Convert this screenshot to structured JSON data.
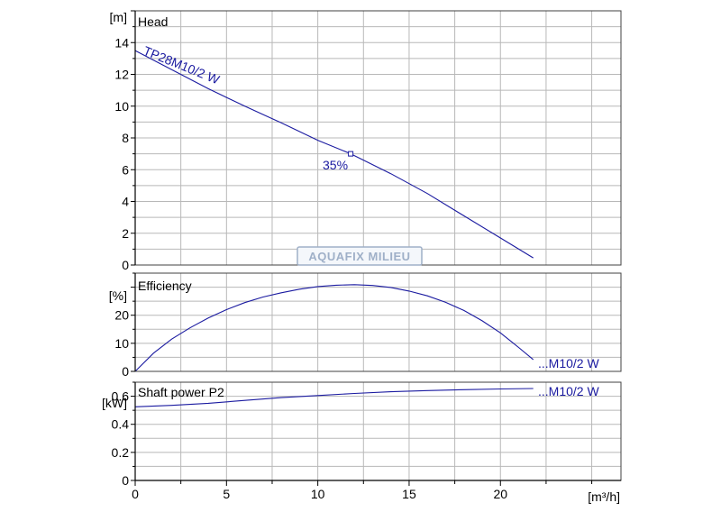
{
  "colors": {
    "curve": "#1a1aa0",
    "grid": "#b8b8b8",
    "frame": "#404040"
  },
  "watermark": "AQUAFIX MILIEU",
  "chart_data": [
    {
      "type": "line",
      "panel": "head",
      "title": "Head",
      "ylabel": "[m]",
      "xlim": [
        0,
        26.6
      ],
      "ylim": [
        0,
        16
      ],
      "yticks": [
        0,
        2,
        4,
        6,
        8,
        10,
        12,
        14
      ],
      "grid": true,
      "series": [
        {
          "name": "TP28M10/2 W",
          "x": [
            0,
            2,
            4,
            6,
            8,
            10,
            11.8,
            14,
            16,
            18,
            20,
            21.8
          ],
          "y": [
            13.5,
            12.3,
            11.1,
            10.0,
            8.95,
            7.85,
            7.0,
            5.75,
            4.5,
            3.1,
            1.7,
            0.45
          ]
        }
      ],
      "annotations": [
        {
          "text": "35%",
          "x": 11.8,
          "y": 7.0
        }
      ]
    },
    {
      "type": "line",
      "panel": "efficiency",
      "title": "Efficiency",
      "ylabel": "[%]",
      "xlim": [
        0,
        26.6
      ],
      "ylim": [
        0,
        35
      ],
      "yticks": [
        0,
        10,
        20
      ],
      "grid": true,
      "series": [
        {
          "name": "...M10/2 W",
          "x": [
            0,
            1,
            2,
            3,
            4,
            5,
            6,
            7,
            8,
            9,
            10,
            11,
            12,
            13,
            14,
            15,
            16,
            17,
            18,
            19,
            20,
            21,
            21.8
          ],
          "y": [
            0,
            6.5,
            11.5,
            15.5,
            19.0,
            22.0,
            24.5,
            26.5,
            28.0,
            29.3,
            30.2,
            30.7,
            30.9,
            30.6,
            29.9,
            28.6,
            26.9,
            24.6,
            21.7,
            18.0,
            13.7,
            8.5,
            4.2
          ]
        }
      ]
    },
    {
      "type": "line",
      "panel": "shaft_power",
      "title": "Shaft power P2",
      "ylabel": "[kW]",
      "xlabel": "[m³/h]",
      "xlim": [
        0,
        26.6
      ],
      "ylim": [
        0,
        0.7
      ],
      "xticks": [
        0,
        5,
        10,
        15,
        20
      ],
      "yticks": [
        0,
        0.2,
        0.4,
        0.6
      ],
      "grid": true,
      "series": [
        {
          "name": "...M10/2 W",
          "x": [
            0,
            2,
            4,
            6,
            8,
            10,
            12,
            14,
            16,
            18,
            20,
            21.8
          ],
          "y": [
            0.525,
            0.535,
            0.55,
            0.57,
            0.59,
            0.605,
            0.62,
            0.632,
            0.64,
            0.647,
            0.652,
            0.655
          ]
        }
      ]
    }
  ]
}
